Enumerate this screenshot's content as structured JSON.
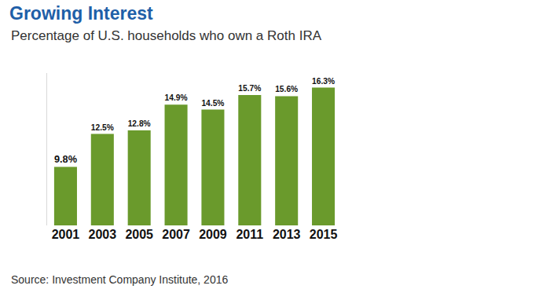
{
  "chart_data": {
    "type": "bar",
    "title": "Growing Interest",
    "subtitle": "Percentage of U.S. households who own a Roth IRA",
    "source": "Source: Investment Company Institute, 2016",
    "categories": [
      "2001",
      "2003",
      "2005",
      "2007",
      "2009",
      "2011",
      "2013",
      "2015"
    ],
    "values": [
      9.8,
      12.5,
      12.8,
      14.9,
      14.5,
      15.7,
      15.6,
      16.3
    ],
    "value_labels": [
      "9.8%",
      "12.5%",
      "12.8%",
      "14.9%",
      "14.5%",
      "15.7%",
      "15.6%",
      "16.3%"
    ],
    "color": "#6a9a2c",
    "ylim": [
      5,
      17.5
    ],
    "grid": false,
    "data_labels": true,
    "tick_labels": "x"
  }
}
